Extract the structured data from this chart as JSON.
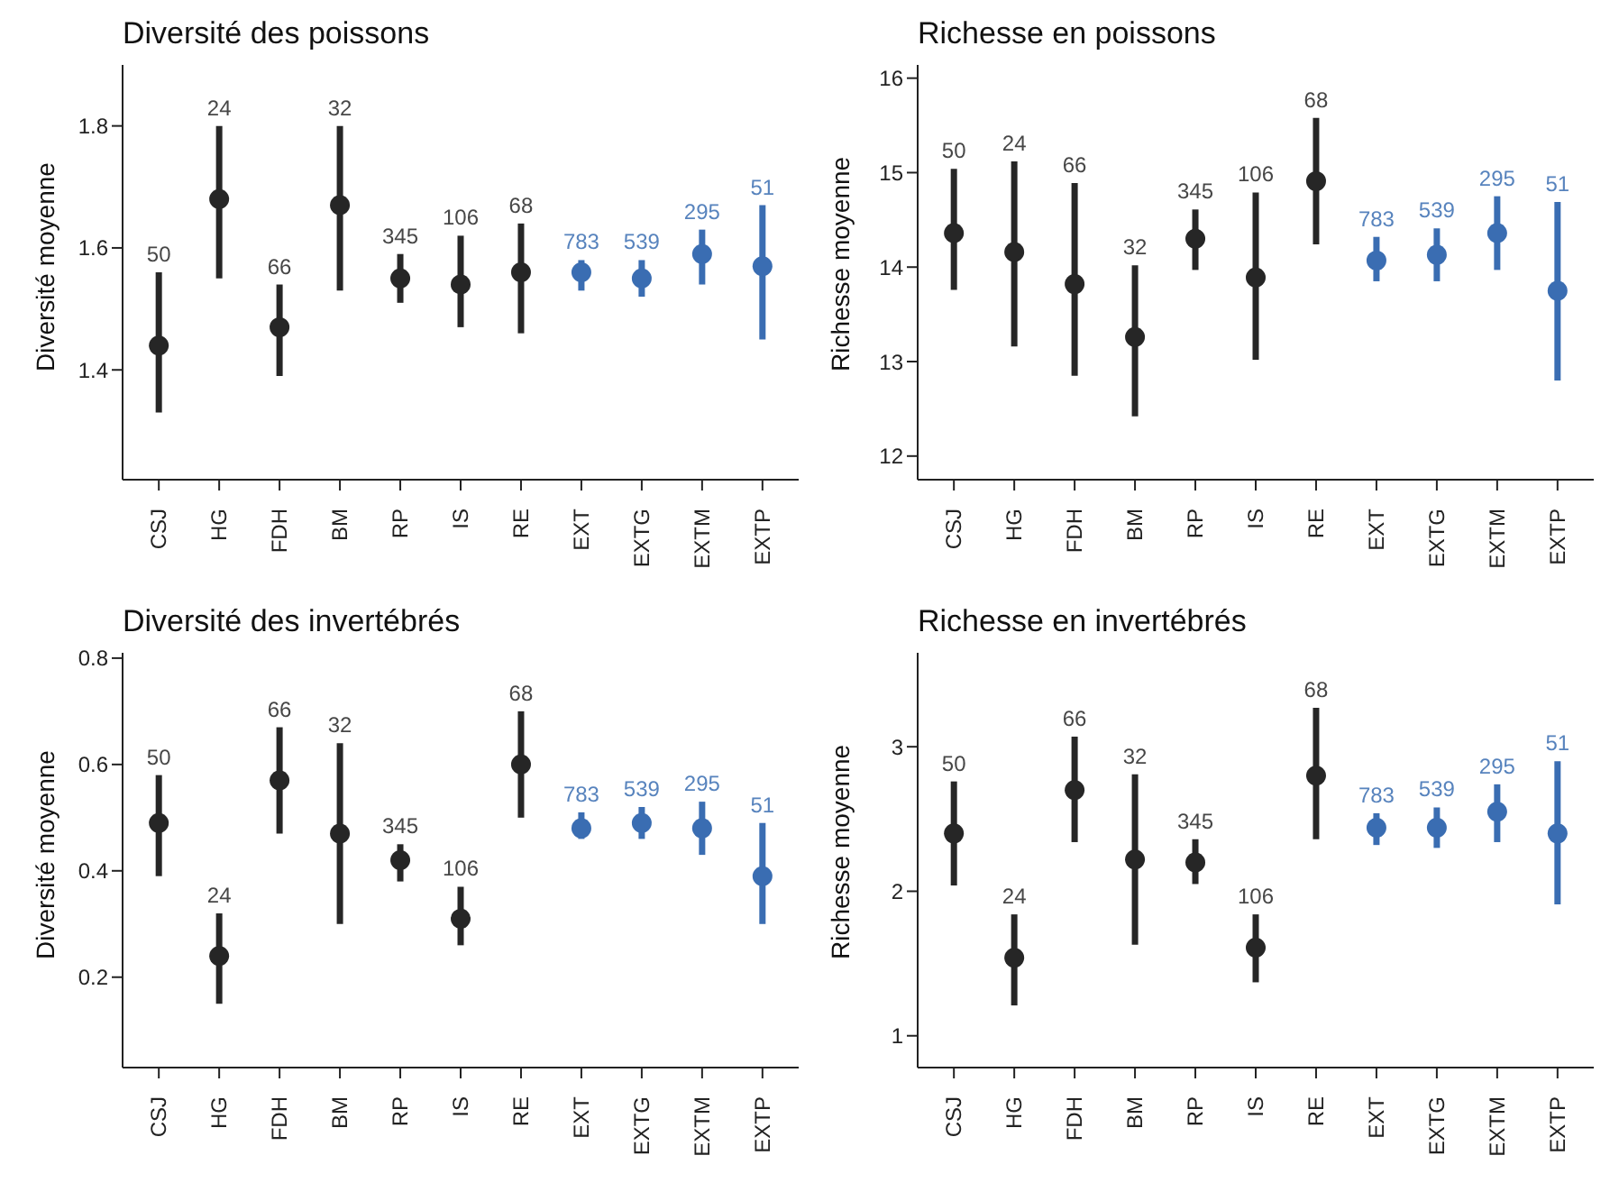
{
  "chart_data": [
    {
      "type": "scatter",
      "title": "Diversité des poissons",
      "ylabel": "Diversité moyenne",
      "categories": [
        "CSJ",
        "HG",
        "FDH",
        "BM",
        "RP",
        "IS",
        "RE",
        "EXT",
        "EXTG",
        "EXTM",
        "EXTP"
      ],
      "values": [
        1.44,
        1.68,
        1.47,
        1.67,
        1.55,
        1.54,
        1.56,
        1.56,
        1.55,
        1.59,
        1.57
      ],
      "errors": [
        [
          1.33,
          1.56
        ],
        [
          1.55,
          1.8
        ],
        [
          1.39,
          1.54
        ],
        [
          1.53,
          1.8
        ],
        [
          1.51,
          1.59
        ],
        [
          1.47,
          1.62
        ],
        [
          1.46,
          1.64
        ],
        [
          1.53,
          1.58
        ],
        [
          1.52,
          1.58
        ],
        [
          1.54,
          1.63
        ],
        [
          1.45,
          1.67
        ]
      ],
      "annotations": [
        {
          "text": "50",
          "x": "CSJ",
          "y": 1.56
        },
        {
          "text": "24",
          "x": "HG",
          "y": 1.8
        },
        {
          "text": "66",
          "x": "FDH",
          "y": 1.54
        },
        {
          "text": "32",
          "x": "BM",
          "y": 1.8
        },
        {
          "text": "345",
          "x": "RP",
          "y": 1.59
        },
        {
          "text": "106",
          "x": "IS",
          "y": 1.62
        },
        {
          "text": "68",
          "x": "RE",
          "y": 1.64
        },
        {
          "text": "783",
          "x": "EXT",
          "y": 1.58
        },
        {
          "text": "539",
          "x": "EXTG",
          "y": 1.58
        },
        {
          "text": "295",
          "x": "EXTM",
          "y": 1.63
        },
        {
          "text": "51",
          "x": "EXTP",
          "y": 1.67
        }
      ],
      "colors": [
        "#262626",
        "#262626",
        "#262626",
        "#262626",
        "#262626",
        "#262626",
        "#262626",
        "#3a6db2",
        "#3a6db2",
        "#3a6db2",
        "#3a6db2"
      ],
      "ylim": [
        1.22,
        1.9
      ],
      "yticks": [
        1.4,
        1.6,
        1.8
      ],
      "grid": false,
      "legend": false,
      "marker": "circle"
    },
    {
      "type": "scatter",
      "title": "Richesse en poissons",
      "ylabel": "Richesse moyenne",
      "categories": [
        "CSJ",
        "HG",
        "FDH",
        "BM",
        "RP",
        "IS",
        "RE",
        "EXT",
        "EXTG",
        "EXTM",
        "EXTP"
      ],
      "values": [
        14.36,
        14.16,
        13.82,
        13.26,
        14.3,
        13.89,
        14.91,
        14.07,
        14.13,
        14.36,
        13.75
      ],
      "errors": [
        [
          13.76,
          15.04
        ],
        [
          13.16,
          15.12
        ],
        [
          12.85,
          14.89
        ],
        [
          12.42,
          14.02
        ],
        [
          13.97,
          14.61
        ],
        [
          13.02,
          14.79
        ],
        [
          14.24,
          15.58
        ],
        [
          13.85,
          14.32
        ],
        [
          13.85,
          14.41
        ],
        [
          13.97,
          14.75
        ],
        [
          12.8,
          14.69
        ]
      ],
      "annotations": [
        {
          "text": "50",
          "x": "CSJ",
          "y": 15.04
        },
        {
          "text": "24",
          "x": "HG",
          "y": 15.12
        },
        {
          "text": "66",
          "x": "FDH",
          "y": 14.89
        },
        {
          "text": "32",
          "x": "BM",
          "y": 14.02
        },
        {
          "text": "345",
          "x": "RP",
          "y": 14.61
        },
        {
          "text": "106",
          "x": "IS",
          "y": 14.79
        },
        {
          "text": "68",
          "x": "RE",
          "y": 15.58
        },
        {
          "text": "783",
          "x": "EXT",
          "y": 14.32
        },
        {
          "text": "539",
          "x": "EXTG",
          "y": 14.41
        },
        {
          "text": "295",
          "x": "EXTM",
          "y": 14.75
        },
        {
          "text": "51",
          "x": "EXTP",
          "y": 14.69
        }
      ],
      "colors": [
        "#262626",
        "#262626",
        "#262626",
        "#262626",
        "#262626",
        "#262626",
        "#262626",
        "#3a6db2",
        "#3a6db2",
        "#3a6db2",
        "#3a6db2"
      ],
      "ylim": [
        11.75,
        16.14
      ],
      "yticks": [
        12,
        13,
        14,
        15,
        16
      ],
      "grid": false,
      "legend": false,
      "marker": "circle"
    },
    {
      "type": "scatter",
      "title": "Diversité des invertébrés",
      "ylabel": "Diversité moyenne",
      "categories": [
        "CSJ",
        "HG",
        "FDH",
        "BM",
        "RP",
        "IS",
        "RE",
        "EXT",
        "EXTG",
        "EXTM",
        "EXTP"
      ],
      "values": [
        0.49,
        0.24,
        0.57,
        0.47,
        0.42,
        0.31,
        0.6,
        0.48,
        0.49,
        0.48,
        0.39
      ],
      "errors": [
        [
          0.39,
          0.58
        ],
        [
          0.15,
          0.32
        ],
        [
          0.47,
          0.67
        ],
        [
          0.3,
          0.64
        ],
        [
          0.38,
          0.45
        ],
        [
          0.26,
          0.37
        ],
        [
          0.5,
          0.7
        ],
        [
          0.46,
          0.51
        ],
        [
          0.46,
          0.52
        ],
        [
          0.43,
          0.53
        ],
        [
          0.3,
          0.49
        ]
      ],
      "annotations": [
        {
          "text": "50",
          "x": "CSJ",
          "y": 0.58
        },
        {
          "text": "24",
          "x": "HG",
          "y": 0.32
        },
        {
          "text": "66",
          "x": "FDH",
          "y": 0.67
        },
        {
          "text": "32",
          "x": "BM",
          "y": 0.64
        },
        {
          "text": "345",
          "x": "RP",
          "y": 0.45
        },
        {
          "text": "106",
          "x": "IS",
          "y": 0.37
        },
        {
          "text": "68",
          "x": "RE",
          "y": 0.7
        },
        {
          "text": "783",
          "x": "EXT",
          "y": 0.51
        },
        {
          "text": "539",
          "x": "EXTG",
          "y": 0.52
        },
        {
          "text": "295",
          "x": "EXTM",
          "y": 0.53
        },
        {
          "text": "51",
          "x": "EXTP",
          "y": 0.49
        }
      ],
      "colors": [
        "#262626",
        "#262626",
        "#262626",
        "#262626",
        "#262626",
        "#262626",
        "#262626",
        "#3a6db2",
        "#3a6db2",
        "#3a6db2",
        "#3a6db2"
      ],
      "ylim": [
        0.03,
        0.81
      ],
      "yticks": [
        0.2,
        0.4,
        0.6,
        0.8
      ],
      "grid": false,
      "legend": false,
      "marker": "circle"
    },
    {
      "type": "scatter",
      "title": "Richesse en invertébrés",
      "ylabel": "Richesse moyenne",
      "categories": [
        "CSJ",
        "HG",
        "FDH",
        "BM",
        "RP",
        "IS",
        "RE",
        "EXT",
        "EXTG",
        "EXTM",
        "EXTP"
      ],
      "values": [
        2.4,
        1.54,
        2.7,
        2.22,
        2.2,
        1.61,
        2.8,
        2.44,
        2.44,
        2.55,
        2.4
      ],
      "errors": [
        [
          2.04,
          2.76
        ],
        [
          1.21,
          1.84
        ],
        [
          2.34,
          3.07
        ],
        [
          1.63,
          2.81
        ],
        [
          2.05,
          2.36
        ],
        [
          1.37,
          1.84
        ],
        [
          2.36,
          3.27
        ],
        [
          2.32,
          2.54
        ],
        [
          2.3,
          2.58
        ],
        [
          2.34,
          2.74
        ],
        [
          1.91,
          2.9
        ]
      ],
      "annotations": [
        {
          "text": "50",
          "x": "CSJ",
          "y": 2.76
        },
        {
          "text": "24",
          "x": "HG",
          "y": 1.84
        },
        {
          "text": "66",
          "x": "FDH",
          "y": 3.07
        },
        {
          "text": "32",
          "x": "BM",
          "y": 2.81
        },
        {
          "text": "345",
          "x": "RP",
          "y": 2.36
        },
        {
          "text": "106",
          "x": "IS",
          "y": 1.84
        },
        {
          "text": "68",
          "x": "RE",
          "y": 3.27
        },
        {
          "text": "783",
          "x": "EXT",
          "y": 2.54
        },
        {
          "text": "539",
          "x": "EXTG",
          "y": 2.58
        },
        {
          "text": "295",
          "x": "EXTM",
          "y": 2.74
        },
        {
          "text": "51",
          "x": "EXTP",
          "y": 2.9
        }
      ],
      "colors": [
        "#262626",
        "#262626",
        "#262626",
        "#262626",
        "#262626",
        "#262626",
        "#262626",
        "#3a6db2",
        "#3a6db2",
        "#3a6db2",
        "#3a6db2"
      ],
      "ylim": [
        0.78,
        3.65
      ],
      "yticks": [
        1,
        2,
        3
      ],
      "grid": false,
      "legend": false,
      "marker": "circle"
    }
  ]
}
